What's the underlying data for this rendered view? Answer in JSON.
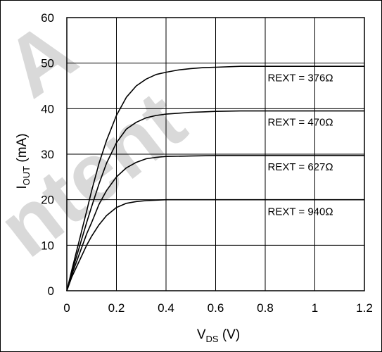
{
  "chart_data": {
    "type": "line",
    "xlabel": {
      "main": "V",
      "sub": "DS",
      "unit": " (V)"
    },
    "ylabel": {
      "main": "I",
      "sub": "OUT",
      "unit": " (mA)"
    },
    "xlim": [
      0,
      1.2
    ],
    "ylim": [
      0,
      60
    ],
    "x_ticks": [
      "0",
      "0.2",
      "0.4",
      "0.6",
      "0.8",
      "1",
      "1.2"
    ],
    "y_ticks": [
      "0",
      "10",
      "20",
      "30",
      "40",
      "50",
      "60"
    ],
    "grid": true,
    "series": [
      {
        "name": "REXT = 376Ω",
        "x": [
          0,
          0.02,
          0.05,
          0.08,
          0.1,
          0.13,
          0.16,
          0.2,
          0.24,
          0.28,
          0.32,
          0.36,
          0.4,
          0.45,
          0.5,
          0.55,
          0.6,
          0.7,
          0.8,
          1.0,
          1.2
        ],
        "y": [
          0,
          4.5,
          11,
          17.5,
          22,
          28,
          33,
          38.5,
          42.5,
          45,
          46.5,
          47.5,
          48,
          48.5,
          48.8,
          49,
          49.1,
          49.3,
          49.3,
          49.3,
          49.3
        ]
      },
      {
        "name": "REXT = 470Ω",
        "x": [
          0,
          0.02,
          0.05,
          0.08,
          0.1,
          0.13,
          0.16,
          0.2,
          0.24,
          0.28,
          0.32,
          0.36,
          0.4,
          0.45,
          0.5,
          0.55,
          0.6,
          0.7,
          0.8,
          1.0,
          1.2
        ],
        "y": [
          0,
          4,
          9.5,
          15,
          18.5,
          23.5,
          28,
          32.5,
          35.5,
          37,
          38,
          38.5,
          38.8,
          39,
          39.2,
          39.3,
          39.4,
          39.5,
          39.5,
          39.5,
          39.5
        ]
      },
      {
        "name": "REXT = 627Ω",
        "x": [
          0,
          0.02,
          0.05,
          0.08,
          0.1,
          0.13,
          0.16,
          0.2,
          0.24,
          0.28,
          0.32,
          0.36,
          0.4,
          0.5,
          0.6,
          0.8,
          1.0,
          1.2
        ],
        "y": [
          0,
          3.5,
          8,
          12.5,
          15,
          19,
          22,
          25,
          27,
          28.2,
          29,
          29.3,
          29.5,
          29.6,
          29.7,
          29.7,
          29.7,
          29.7
        ]
      },
      {
        "name": "REXT = 940Ω",
        "x": [
          0,
          0.02,
          0.05,
          0.08,
          0.1,
          0.13,
          0.16,
          0.2,
          0.24,
          0.28,
          0.32,
          0.36,
          0.4,
          0.5,
          0.6,
          0.8,
          1.0,
          1.2
        ],
        "y": [
          0,
          3,
          6.5,
          10,
          12,
          14.5,
          16.5,
          18.3,
          19.2,
          19.6,
          19.8,
          19.9,
          20,
          20,
          20,
          20,
          20,
          20
        ]
      }
    ],
    "series_labels": [
      {
        "text": "REXT = 376Ω",
        "x": 0.81,
        "y": 46.8
      },
      {
        "text": "REXT = 470Ω",
        "x": 0.81,
        "y": 37.0
      },
      {
        "text": "REXT = 627Ω",
        "x": 0.81,
        "y": 27.2
      },
      {
        "text": "REXT = 940Ω",
        "x": 0.81,
        "y": 17.4
      }
    ],
    "watermark": [
      "A",
      "ntent"
    ],
    "colors": {
      "line": "#000000",
      "grid": "#000000",
      "watermark": "#d9d9d9"
    }
  }
}
